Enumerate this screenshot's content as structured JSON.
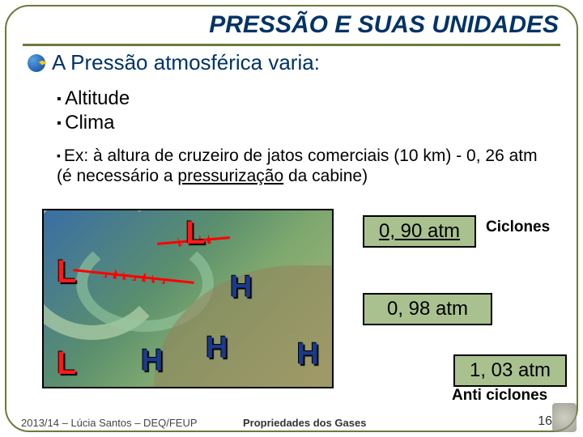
{
  "title": "PRESSÃO E SUAS UNIDADES",
  "subtitle": "A Pressão atmosférica varia:",
  "bullets_primary": [
    "Altitude",
    "Clima"
  ],
  "bullet_example_pre": "Ex: à altura de cruzeiro de jatos comerciais (10 km) - 0, 26 atm (é necessário a ",
  "bullet_example_underlined": "pressurização",
  "bullet_example_post": " da cabine)",
  "map": {
    "low_labels": [
      "L",
      "L",
      "L"
    ],
    "high_labels": [
      "H",
      "H",
      "H",
      "H"
    ]
  },
  "pressure_boxes": {
    "p1": "0, 90 atm",
    "p2": "0, 98 atm",
    "p3": "1, 03 atm"
  },
  "annotations": {
    "ciclones": "Ciclones",
    "anticiclones": "Anti ciclones"
  },
  "footer": {
    "left": "2013/14 – Lúcia Santos – DEQ/FEUP",
    "center": "Propriedades dos Gases",
    "page": "16"
  },
  "colors": {
    "frame": "#6b7a3a",
    "title": "#003366",
    "box_bg": "#a9c18f",
    "low": "#ff1a1a",
    "high": "#1a3a8a"
  }
}
